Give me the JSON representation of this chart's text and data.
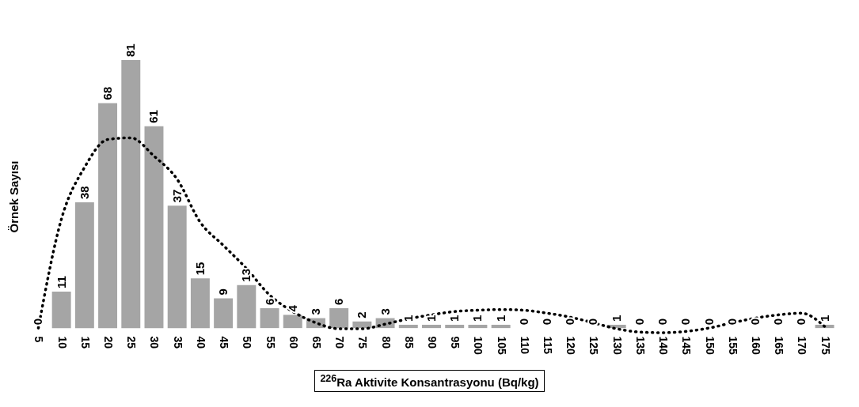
{
  "chart_data": {
    "type": "bar",
    "xlabel": "$^{226}$Ra Aktivite Konsantrasyonu (Bq/kg)",
    "ylabel": "Örnek Sayısı",
    "categories": [
      "5",
      "10",
      "15",
      "20",
      "25",
      "30",
      "35",
      "40",
      "45",
      "50",
      "55",
      "60",
      "65",
      "70",
      "75",
      "80",
      "85",
      "90",
      "95",
      "100",
      "105",
      "110",
      "115",
      "120",
      "125",
      "130",
      "135",
      "140",
      "145",
      "150",
      "155",
      "160",
      "165",
      "170",
      "175"
    ],
    "series": [
      {
        "color": "#a5a5a5",
        "values": [
          0,
          11,
          38,
          68,
          81,
          61,
          37,
          15,
          9,
          13,
          6,
          4,
          3,
          6,
          2,
          3,
          1,
          1,
          1,
          1,
          1,
          0,
          0,
          0,
          0,
          1,
          0,
          0,
          0,
          0,
          0,
          0,
          0,
          0,
          1
        ],
        "value_labels": [
          "0",
          "11",
          "38",
          "68",
          "81",
          "61",
          "37",
          "15",
          "9",
          "13",
          "6",
          "4",
          "3",
          "6",
          "2",
          "3",
          "1",
          "1",
          "1",
          "1",
          "1",
          "0",
          "0",
          "0",
          "0",
          "1",
          "0",
          "0",
          "0",
          "0",
          "0",
          "0",
          "0",
          "0",
          "1"
        ]
      },
      {
        "type": "line",
        "color": "#000000",
        "line_style": "dotted",
        "values": [
          0,
          33,
          48.6,
          57,
          57.5,
          52,
          45,
          32,
          25,
          18,
          10,
          5,
          1.6,
          -0.2,
          -0.2,
          1.2,
          2.8,
          4,
          5,
          5.4,
          5.6,
          5.4,
          4.5,
          3.3,
          1.6,
          -0.2,
          -1.2,
          -1.4,
          -1,
          0,
          1.6,
          3,
          4,
          4.5,
          0.5
        ]
      }
    ]
  }
}
